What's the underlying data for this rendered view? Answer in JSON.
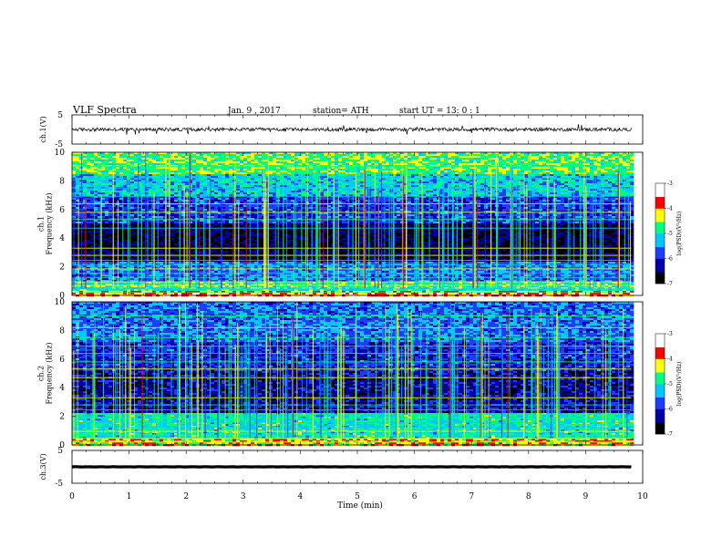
{
  "header": {
    "title": "VLF  Spectra",
    "date": "Jan.  9  , 2017",
    "station": "station= ATH",
    "start_ut": "start  UT  =    13: 0   : 1"
  },
  "chart_data": [
    {
      "type": "line",
      "name": "ch1-waveform",
      "ylabel": "ch.1(V)",
      "ylim": [
        -5,
        5
      ],
      "yticks": [
        "5",
        "-5"
      ],
      "baseline": 0,
      "amplitude_approx": 1.2
    },
    {
      "type": "heatmap",
      "name": "ch1-spectrogram",
      "ylabel": "ch.1\nFrequency  (kHz)",
      "ylim": [
        0,
        10
      ],
      "yticks": [
        "0",
        "2",
        "4",
        "6",
        "8",
        "10"
      ],
      "xlim": [
        0,
        10
      ],
      "data_end_min": 9.8,
      "colorbar": {
        "label": "log(PSD)(V²/Hz)",
        "range": [
          -7,
          -3
        ],
        "ticks": [
          "-3",
          "-4",
          "-5",
          "-6",
          "-7"
        ]
      },
      "colormap": [
        "#000000",
        "#0000aa",
        "#1e3cff",
        "#00c8ff",
        "#00ff80",
        "#ffff00",
        "#ff0000",
        "#ffffff"
      ],
      "bands_khz": [
        {
          "f": [
            0,
            0.3
          ],
          "level": -3.8
        },
        {
          "f": [
            0.3,
            1.0
          ],
          "level": -4.8
        },
        {
          "f": [
            1.0,
            2.4
          ],
          "level": -5.6
        },
        {
          "f": [
            2.4,
            5.0
          ],
          "level": -6.6
        },
        {
          "f": [
            5.0,
            7.0
          ],
          "level": -5.9
        },
        {
          "f": [
            7.0,
            8.5
          ],
          "level": -5.2
        },
        {
          "f": [
            8.5,
            10
          ],
          "level": -4.6
        }
      ]
    },
    {
      "type": "heatmap",
      "name": "ch2-spectrogram",
      "ylabel": "ch.2\nFrequency  (kHz)",
      "ylim": [
        0,
        10
      ],
      "yticks": [
        "0",
        "2",
        "4",
        "6",
        "8",
        "10"
      ],
      "xlim": [
        0,
        10
      ],
      "data_end_min": 9.8,
      "colorbar": {
        "label": "log(PSD)(V²/Hz)",
        "range": [
          -7,
          -3
        ],
        "ticks": [
          "-3",
          "-4",
          "-5",
          "-6",
          "-7"
        ]
      },
      "colormap": [
        "#000000",
        "#0000aa",
        "#1e3cff",
        "#00c8ff",
        "#00ff80",
        "#ffff00",
        "#ff0000",
        "#ffffff"
      ],
      "bands_khz": [
        {
          "f": [
            0,
            0.4
          ],
          "level": -4.2
        },
        {
          "f": [
            0.4,
            2.2
          ],
          "level": -5.0
        },
        {
          "f": [
            2.2,
            5.2
          ],
          "level": -6.3
        },
        {
          "f": [
            5.2,
            7.2
          ],
          "level": -6.0
        },
        {
          "f": [
            7.2,
            10
          ],
          "level": -5.6
        }
      ]
    },
    {
      "type": "line",
      "name": "ch3-waveform",
      "ylabel": "ch.3(V)",
      "ylim": [
        -5,
        5
      ],
      "yticks": [
        "5",
        "-5"
      ],
      "baseline": 0,
      "amplitude_approx": 0.1
    }
  ],
  "xaxis": {
    "label": "Time  (min)",
    "range": [
      0,
      10
    ],
    "ticks": [
      "0",
      "1",
      "2",
      "3",
      "4",
      "5",
      "6",
      "7",
      "8",
      "9",
      "10"
    ]
  }
}
